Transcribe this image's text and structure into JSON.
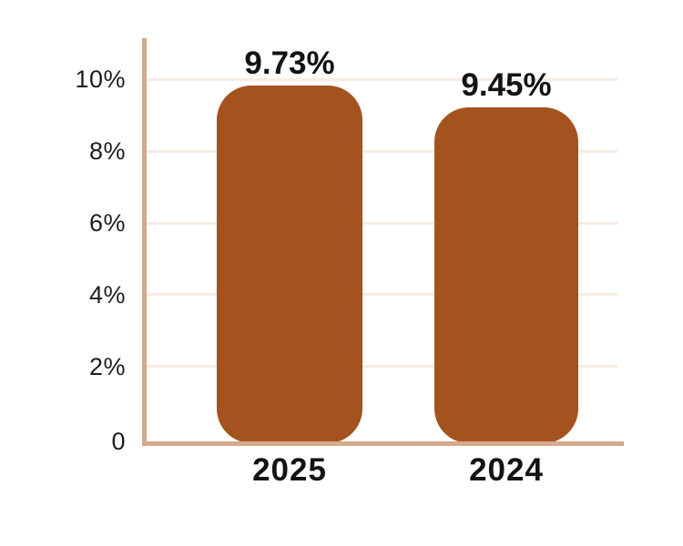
{
  "chart_data": {
    "type": "bar",
    "categories": [
      "2025",
      "2024"
    ],
    "values": [
      9.73,
      9.45
    ],
    "value_labels": [
      "9.73%",
      "9.45%"
    ],
    "title": "",
    "xlabel": "",
    "ylabel": "",
    "ylim": [
      0,
      10
    ],
    "ytick_interval": 2,
    "ytick_labels": [
      "10%",
      "8%",
      "6%",
      "4%",
      "2%",
      "0"
    ],
    "grid": "horizontal-only",
    "legend_position": "none",
    "colors": {
      "bar_fill": "#A4531E",
      "axis_line": "#D5A98C",
      "gridline": "#F7ECE5",
      "label_text": "#131313",
      "background": "#FFFFFF"
    }
  }
}
